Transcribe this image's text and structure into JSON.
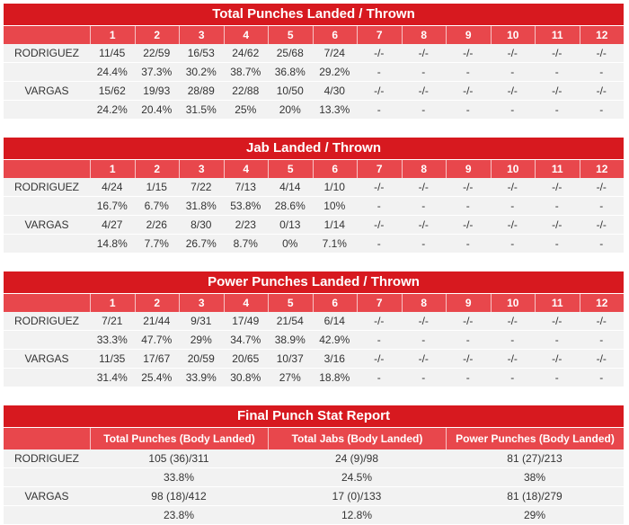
{
  "tables": [
    {
      "title": "Total Punches Landed / Thrown",
      "rounds": [
        "1",
        "2",
        "3",
        "4",
        "5",
        "6",
        "7",
        "8",
        "9",
        "10",
        "11",
        "12"
      ],
      "players": [
        {
          "name": "RODRIGUEZ",
          "landed": [
            "11/45",
            "22/59",
            "16/53",
            "24/62",
            "25/68",
            "7/24",
            "-/-",
            "-/-",
            "-/-",
            "-/-",
            "-/-",
            "-/-"
          ],
          "pct": [
            "24.4%",
            "37.3%",
            "30.2%",
            "38.7%",
            "36.8%",
            "29.2%",
            "-",
            "-",
            "-",
            "-",
            "-",
            "-"
          ]
        },
        {
          "name": "VARGAS",
          "landed": [
            "15/62",
            "19/93",
            "28/89",
            "22/88",
            "10/50",
            "4/30",
            "-/-",
            "-/-",
            "-/-",
            "-/-",
            "-/-",
            "-/-"
          ],
          "pct": [
            "24.2%",
            "20.4%",
            "31.5%",
            "25%",
            "20%",
            "13.3%",
            "-",
            "-",
            "-",
            "-",
            "-",
            "-"
          ]
        }
      ]
    },
    {
      "title": "Jab Landed / Thrown",
      "rounds": [
        "1",
        "2",
        "3",
        "4",
        "5",
        "6",
        "7",
        "8",
        "9",
        "10",
        "11",
        "12"
      ],
      "players": [
        {
          "name": "RODRIGUEZ",
          "landed": [
            "4/24",
            "1/15",
            "7/22",
            "7/13",
            "4/14",
            "1/10",
            "-/-",
            "-/-",
            "-/-",
            "-/-",
            "-/-",
            "-/-"
          ],
          "pct": [
            "16.7%",
            "6.7%",
            "31.8%",
            "53.8%",
            "28.6%",
            "10%",
            "-",
            "-",
            "-",
            "-",
            "-",
            "-"
          ]
        },
        {
          "name": "VARGAS",
          "landed": [
            "4/27",
            "2/26",
            "8/30",
            "2/23",
            "0/13",
            "1/14",
            "-/-",
            "-/-",
            "-/-",
            "-/-",
            "-/-",
            "-/-"
          ],
          "pct": [
            "14.8%",
            "7.7%",
            "26.7%",
            "8.7%",
            "0%",
            "7.1%",
            "-",
            "-",
            "-",
            "-",
            "-",
            "-"
          ]
        }
      ]
    },
    {
      "title": "Power Punches Landed / Thrown",
      "rounds": [
        "1",
        "2",
        "3",
        "4",
        "5",
        "6",
        "7",
        "8",
        "9",
        "10",
        "11",
        "12"
      ],
      "players": [
        {
          "name": "RODRIGUEZ",
          "landed": [
            "7/21",
            "21/44",
            "9/31",
            "17/49",
            "21/54",
            "6/14",
            "-/-",
            "-/-",
            "-/-",
            "-/-",
            "-/-",
            "-/-"
          ],
          "pct": [
            "33.3%",
            "47.7%",
            "29%",
            "34.7%",
            "38.9%",
            "42.9%",
            "-",
            "-",
            "-",
            "-",
            "-",
            "-"
          ]
        },
        {
          "name": "VARGAS",
          "landed": [
            "11/35",
            "17/67",
            "20/59",
            "20/65",
            "10/37",
            "3/16",
            "-/-",
            "-/-",
            "-/-",
            "-/-",
            "-/-",
            "-/-"
          ],
          "pct": [
            "31.4%",
            "25.4%",
            "33.9%",
            "30.8%",
            "27%",
            "18.8%",
            "-",
            "-",
            "-",
            "-",
            "-",
            "-"
          ]
        }
      ]
    },
    {
      "title": "Final Punch Stat Report",
      "rounds": [
        "Total Punches (Body Landed)",
        "Total Jabs (Body Landed)",
        "Power Punches (Body Landed)"
      ],
      "players": [
        {
          "name": "RODRIGUEZ",
          "landed": [
            "105 (36)/311",
            "24 (9)/98",
            "81 (27)/213"
          ],
          "pct": [
            "33.8%",
            "24.5%",
            "38%"
          ]
        },
        {
          "name": "VARGAS",
          "landed": [
            "98 (18)/412",
            "17 (0)/133",
            "81 (18)/279"
          ],
          "pct": [
            "23.8%",
            "12.8%",
            "29%"
          ]
        }
      ]
    }
  ]
}
